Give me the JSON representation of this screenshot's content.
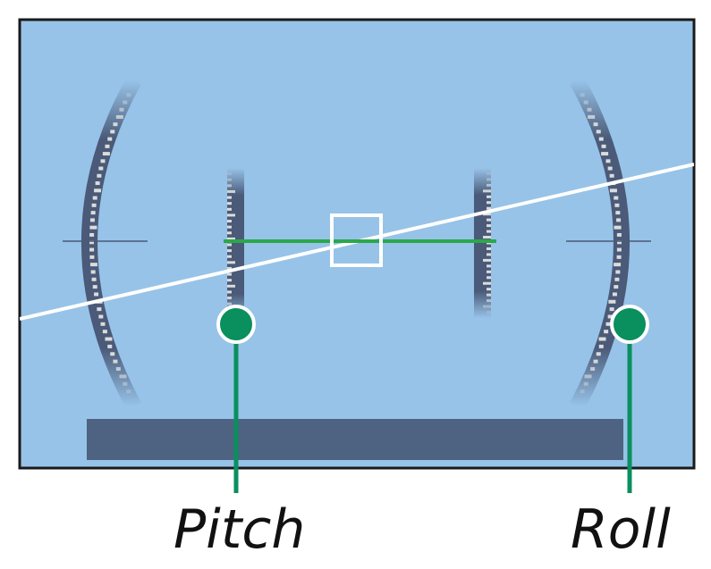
{
  "labels": {
    "pitch": "Pitch",
    "roll": "Roll"
  },
  "indicator": {
    "roll_angle_deg": -15.8,
    "pitch_level": 0
  },
  "colors": {
    "screen_bg": "#97c3e8",
    "frame": "#1a1a1a",
    "scale_dark": "#4a5a78",
    "tick": "#e0e0e0",
    "horizon_line": "#ffffff",
    "level_line": "#2aa84a",
    "marker_green": "#0a8f5f",
    "bottom_bar": "#4e6281"
  }
}
